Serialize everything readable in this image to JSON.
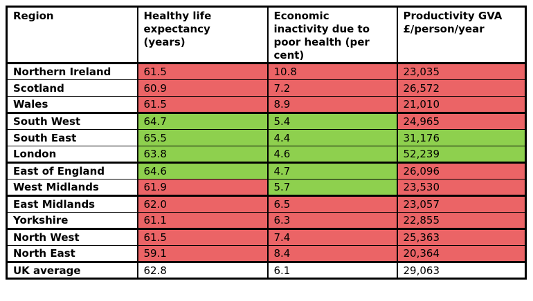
{
  "colors": {
    "negative": "#EB6466",
    "positive": "#8ED04E",
    "neutral": "#FFFFFF",
    "border": "#000000",
    "text": "#000000"
  },
  "table": {
    "columns": [
      {
        "label": "Region"
      },
      {
        "label": "Healthy life\nexpectancy\n(years)"
      },
      {
        "label": "Economic\ninactivity due to\npoor health (per\ncent)"
      },
      {
        "label": "Productivity GVA\n£/person/year"
      }
    ],
    "rows": [
      {
        "region": "Northern Ireland",
        "hle": "61.5",
        "hle_status": "negative",
        "inactivity": "10.8",
        "inactivity_status": "negative",
        "gva": "23,035",
        "gva_status": "negative",
        "group_end": false
      },
      {
        "region": "Scotland",
        "hle": "60.9",
        "hle_status": "negative",
        "inactivity": "7.2",
        "inactivity_status": "negative",
        "gva": "26,572",
        "gva_status": "negative",
        "group_end": false
      },
      {
        "region": "Wales",
        "hle": "61.5",
        "hle_status": "negative",
        "inactivity": "8.9",
        "inactivity_status": "negative",
        "gva": "21,010",
        "gva_status": "negative",
        "group_end": true
      },
      {
        "region": "South West",
        "hle": "64.7",
        "hle_status": "positive",
        "inactivity": "5.4",
        "inactivity_status": "positive",
        "gva": "24,965",
        "gva_status": "negative",
        "group_end": false
      },
      {
        "region": "South East",
        "hle": "65.5",
        "hle_status": "positive",
        "inactivity": "4.4",
        "inactivity_status": "positive",
        "gva": "31,176",
        "gva_status": "positive",
        "group_end": false
      },
      {
        "region": "London",
        "hle": "63.8",
        "hle_status": "positive",
        "inactivity": "4.6",
        "inactivity_status": "positive",
        "gva": "52,239",
        "gva_status": "positive",
        "group_end": true
      },
      {
        "region": "East of England",
        "hle": "64.6",
        "hle_status": "positive",
        "inactivity": "4.7",
        "inactivity_status": "positive",
        "gva": "26,096",
        "gva_status": "negative",
        "group_end": false
      },
      {
        "region": "West Midlands",
        "hle": "61.9",
        "hle_status": "negative",
        "inactivity": "5.7",
        "inactivity_status": "positive",
        "gva": "23,530",
        "gva_status": "negative",
        "group_end": true
      },
      {
        "region": "East Midlands",
        "hle": "62.0",
        "hle_status": "negative",
        "inactivity": "6.5",
        "inactivity_status": "negative",
        "gva": "23,057",
        "gva_status": "negative",
        "group_end": false
      },
      {
        "region": "Yorkshire",
        "hle": "61.1",
        "hle_status": "negative",
        "inactivity": "6.3",
        "inactivity_status": "negative",
        "gva": "22,855",
        "gva_status": "negative",
        "group_end": true
      },
      {
        "region": "North West",
        "hle": "61.5",
        "hle_status": "negative",
        "inactivity": "7.4",
        "inactivity_status": "negative",
        "gva": "25,363",
        "gva_status": "negative",
        "group_end": false
      },
      {
        "region": "North East",
        "hle": "59.1",
        "hle_status": "negative",
        "inactivity": "8.4",
        "inactivity_status": "negative",
        "gva": "20,364",
        "gva_status": "negative",
        "group_end": true
      },
      {
        "region": "UK average",
        "hle": "62.8",
        "hle_status": "neutral",
        "inactivity": "6.1",
        "inactivity_status": "neutral",
        "gva": "29,063",
        "gva_status": "neutral",
        "group_end": false
      }
    ]
  }
}
